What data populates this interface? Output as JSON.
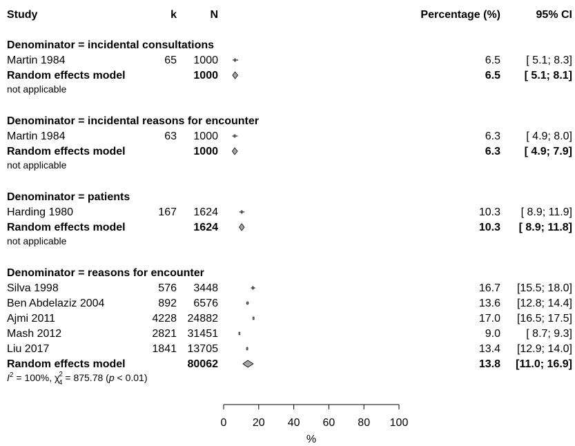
{
  "chart_data": {
    "type": "forest",
    "headers": {
      "study": "Study",
      "k": "k",
      "n": "N",
      "percentage": "Percentage (%)",
      "ci": "95% CI"
    },
    "xlim": [
      0,
      100
    ],
    "xticks": [
      "0",
      "20",
      "40",
      "60",
      "80",
      "100"
    ],
    "xlabel": "%",
    "groups": [
      {
        "title": "Denominator = incidental consultations",
        "studies": [
          {
            "name": "Martin 1984",
            "k": "65",
            "n": "1000",
            "est": 6.5,
            "lo": 5.1,
            "hi": 8.3,
            "pct": "6.5",
            "ci": "[ 5.1;  8.3]"
          }
        ],
        "pooled": {
          "name": "Random effects model",
          "n": "1000",
          "est": 6.5,
          "lo": 5.1,
          "hi": 8.1,
          "pct": "6.5",
          "ci": "[ 5.1;  8.1]"
        },
        "het": {
          "text": "not applicable"
        }
      },
      {
        "title": "Denominator = incidental reasons for encounter",
        "studies": [
          {
            "name": "Martin 1984",
            "k": "63",
            "n": "1000",
            "est": 6.3,
            "lo": 4.9,
            "hi": 8.0,
            "pct": "6.3",
            "ci": "[ 4.9;  8.0]"
          }
        ],
        "pooled": {
          "name": "Random effects model",
          "n": "1000",
          "est": 6.3,
          "lo": 4.9,
          "hi": 7.9,
          "pct": "6.3",
          "ci": "[ 4.9;  7.9]"
        },
        "het": {
          "text": "not applicable"
        }
      },
      {
        "title": "Denominator = patients",
        "studies": [
          {
            "name": "Harding 1980",
            "k": "167",
            "n": "1624",
            "est": 10.3,
            "lo": 8.9,
            "hi": 11.9,
            "pct": "10.3",
            "ci": "[ 8.9; 11.9]"
          }
        ],
        "pooled": {
          "name": "Random effects model",
          "n": "1624",
          "est": 10.3,
          "lo": 8.9,
          "hi": 11.8,
          "pct": "10.3",
          "ci": "[ 8.9; 11.8]"
        },
        "het": {
          "text": "not applicable"
        }
      },
      {
        "title": "Denominator = reasons for encounter",
        "studies": [
          {
            "name": "Silva 1998",
            "k": "576",
            "n": "3448",
            "est": 16.7,
            "lo": 15.5,
            "hi": 18.0,
            "pct": "16.7",
            "ci": "[15.5; 18.0]"
          },
          {
            "name": "Ben Abdelaziz 2004",
            "k": "892",
            "n": "6576",
            "est": 13.6,
            "lo": 12.8,
            "hi": 14.4,
            "pct": "13.6",
            "ci": "[12.8; 14.4]"
          },
          {
            "name": "Ajmi 2011",
            "k": "4228",
            "n": "24882",
            "est": 17.0,
            "lo": 16.5,
            "hi": 17.5,
            "pct": "17.0",
            "ci": "[16.5; 17.5]"
          },
          {
            "name": "Mash 2012",
            "k": "2821",
            "n": "31451",
            "est": 9.0,
            "lo": 8.7,
            "hi": 9.3,
            "pct": "9.0",
            "ci": "[ 8.7;  9.3]"
          },
          {
            "name": "Liu 2017",
            "k": "1841",
            "n": "13705",
            "est": 13.4,
            "lo": 12.9,
            "hi": 14.0,
            "pct": "13.4",
            "ci": "[12.9; 14.0]"
          }
        ],
        "pooled": {
          "name": "Random effects model",
          "n": "80062",
          "est": 13.8,
          "lo": 11.0,
          "hi": 16.9,
          "pct": "13.8",
          "ci": "[11.0; 16.9]"
        },
        "het": {
          "i2": "= 100%,",
          "chi2": "= 875.78 (",
          "p": "< 0.01)",
          "df": "4"
        }
      }
    ]
  }
}
